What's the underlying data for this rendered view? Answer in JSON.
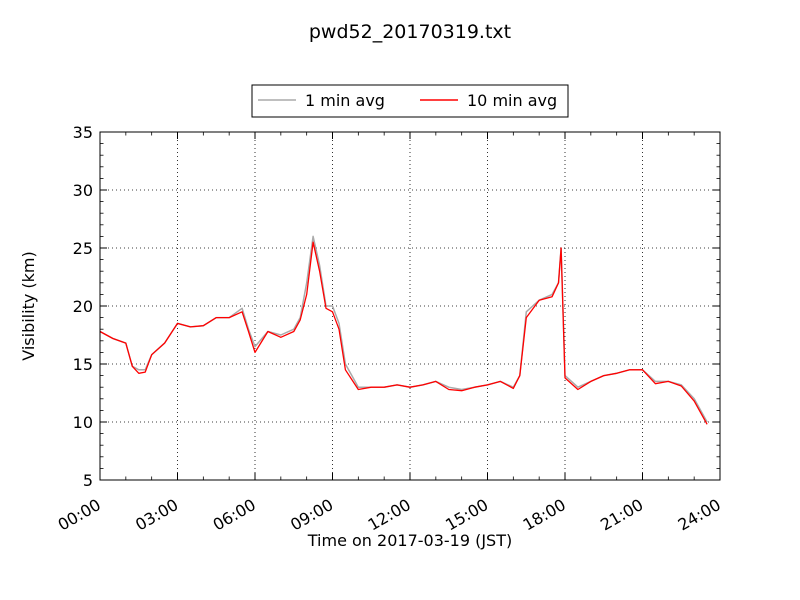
{
  "chart_data": {
    "type": "line",
    "title": "pwd52_20170319.txt",
    "xlabel": "Time on 2017-03-19 (JST)",
    "ylabel": "Visibility (km)",
    "ylim": [
      5,
      35
    ],
    "xlim_hours": [
      0,
      24
    ],
    "x_ticks": [
      "00:00",
      "03:00",
      "06:00",
      "09:00",
      "12:00",
      "15:00",
      "18:00",
      "21:00",
      "24:00"
    ],
    "y_ticks": [
      "5",
      "10",
      "15",
      "20",
      "25",
      "30",
      "35"
    ],
    "grid": true,
    "legend_position": "top-center, above plot",
    "series": [
      {
        "name": "1 min avg",
        "color": "#aaaaaa",
        "x_hours": [
          0,
          0.5,
          1,
          1.25,
          1.5,
          1.75,
          2,
          2.5,
          3,
          3.5,
          4,
          4.5,
          5,
          5.5,
          5.75,
          6,
          6.5,
          7,
          7.5,
          7.75,
          8,
          8.25,
          8.5,
          8.75,
          9,
          9.25,
          9.5,
          10,
          10.5,
          11,
          11.5,
          12,
          12.5,
          13,
          13.5,
          14,
          14.5,
          15,
          15.5,
          16,
          16.25,
          16.5,
          17,
          17.5,
          17.75,
          17.85,
          18,
          18.5,
          19,
          19.5,
          20,
          20.5,
          21,
          21.5,
          22,
          22.5,
          23,
          23.5
        ],
        "y_km": [
          17.8,
          17.2,
          16.8,
          14.8,
          14.5,
          14.5,
          15.8,
          16.8,
          18.5,
          18.2,
          18.3,
          19.0,
          19.0,
          19.8,
          18.0,
          16.5,
          17.8,
          17.5,
          18.0,
          19.0,
          22.0,
          26.0,
          23.5,
          20.0,
          20.0,
          18.5,
          15.0,
          13.0,
          13.0,
          13.0,
          13.2,
          13.0,
          13.2,
          13.5,
          13.0,
          12.8,
          13.0,
          13.2,
          13.5,
          13.0,
          14.0,
          19.5,
          20.5,
          21.0,
          22.0,
          25.0,
          14.0,
          13.0,
          13.5,
          14.0,
          14.2,
          14.5,
          14.5,
          13.5,
          13.5,
          13.2,
          12.0,
          10.0
        ]
      },
      {
        "name": "10 min avg",
        "color": "#ff0000",
        "x_hours": [
          0,
          0.5,
          1,
          1.25,
          1.5,
          1.75,
          2,
          2.5,
          3,
          3.5,
          4,
          4.5,
          5,
          5.5,
          5.75,
          6,
          6.5,
          7,
          7.5,
          7.75,
          8,
          8.25,
          8.5,
          8.75,
          9,
          9.25,
          9.5,
          10,
          10.5,
          11,
          11.5,
          12,
          12.5,
          13,
          13.5,
          14,
          14.5,
          15,
          15.5,
          16,
          16.25,
          16.5,
          17,
          17.5,
          17.75,
          17.85,
          18,
          18.5,
          19,
          19.5,
          20,
          20.5,
          21,
          21.5,
          22,
          22.5,
          23,
          23.5
        ],
        "y_km": [
          17.8,
          17.2,
          16.8,
          14.8,
          14.2,
          14.3,
          15.8,
          16.8,
          18.5,
          18.2,
          18.3,
          19.0,
          19.0,
          19.5,
          17.8,
          16.0,
          17.8,
          17.3,
          17.8,
          18.8,
          21.0,
          25.5,
          23.0,
          19.8,
          19.5,
          18.0,
          14.5,
          12.8,
          13.0,
          13.0,
          13.2,
          13.0,
          13.2,
          13.5,
          12.8,
          12.7,
          13.0,
          13.2,
          13.5,
          12.9,
          14.0,
          19.0,
          20.5,
          20.8,
          22.0,
          25.0,
          13.8,
          12.8,
          13.5,
          14.0,
          14.2,
          14.5,
          14.5,
          13.3,
          13.5,
          13.1,
          11.8,
          9.8
        ]
      }
    ]
  }
}
